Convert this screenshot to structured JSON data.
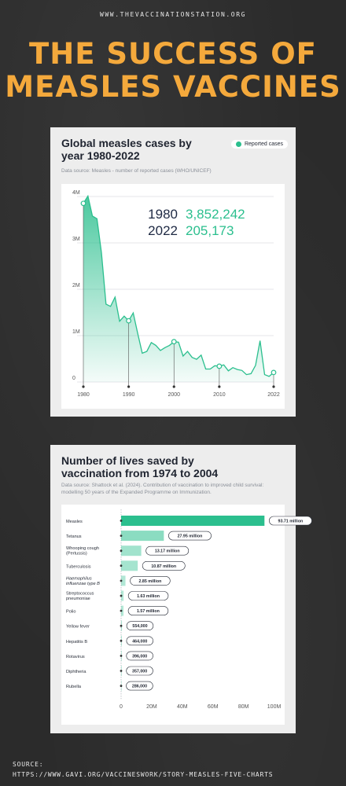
{
  "header": {
    "site_url": "WWW.THEVACCINATIONSTATION.ORG",
    "title_line1": "THE SUCCESS OF",
    "title_line2": "MEASLES VACCINES"
  },
  "colors": {
    "accent": "#f4a93c",
    "series": "#2bbf8e",
    "dark": "#1f2a44"
  },
  "cases_card": {
    "title": "Global measles cases by year 1980-2022",
    "source": "Data source: Measles - number of reported cases (WHO/UNICEF)",
    "legend": "Reported cases"
  },
  "lives_card": {
    "title": "Number of lives saved by vaccination from 1974 to 2004",
    "source": "Data source: Shattock et al. (2024). Contribution of vaccination to improved child survival: modelling 50 years of the Expanded Programme on Immunization."
  },
  "footer": {
    "label": "SOURCE:",
    "url": "HTTPS://WWW.GAVI.ORG/VACCINESWORK/STORY-MEASLES-FIVE-CHARTS"
  },
  "chart_data": [
    {
      "type": "area",
      "title": "Global measles cases by year 1980-2022",
      "xlabel": "",
      "ylabel": "",
      "series": [
        {
          "name": "Reported cases"
        }
      ],
      "xlim": [
        1980,
        2022
      ],
      "ylim": [
        0,
        4000000
      ],
      "y_ticks": [
        0,
        1000000,
        2000000,
        3000000,
        4000000
      ],
      "y_tick_labels": [
        "0",
        "1M",
        "2M",
        "3M",
        "4M"
      ],
      "x_ticks": [
        1980,
        1990,
        2000,
        2010,
        2022
      ],
      "x_tick_labels": [
        "1980",
        "1990",
        "2000",
        "2010",
        "2022"
      ],
      "x": [
        1980,
        1981,
        1982,
        1983,
        1984,
        1985,
        1986,
        1987,
        1988,
        1989,
        1990,
        1991,
        1992,
        1993,
        1994,
        1995,
        1996,
        1997,
        1998,
        1999,
        2000,
        2001,
        2002,
        2003,
        2004,
        2005,
        2006,
        2007,
        2008,
        2009,
        2010,
        2011,
        2012,
        2013,
        2014,
        2015,
        2016,
        2017,
        2018,
        2019,
        2020,
        2021,
        2022
      ],
      "y": [
        3852242,
        4010000,
        3580000,
        3520000,
        2790000,
        1680000,
        1630000,
        1830000,
        1310000,
        1420000,
        1320000,
        1490000,
        1050000,
        620000,
        660000,
        850000,
        790000,
        680000,
        740000,
        790000,
        870000,
        860000,
        560000,
        660000,
        530000,
        490000,
        580000,
        280000,
        280000,
        350000,
        340000,
        370000,
        240000,
        310000,
        270000,
        250000,
        160000,
        180000,
        360000,
        890000,
        160000,
        120000,
        205173
      ],
      "markers": [
        1980,
        1990,
        2000,
        2010,
        2022
      ],
      "annotations": [
        {
          "year": "1980",
          "value": "3,852,242"
        },
        {
          "year": "2022",
          "value": "205,173"
        }
      ]
    },
    {
      "type": "bar",
      "title": "Number of lives saved by vaccination from 1974 to 2004",
      "orientation": "horizontal",
      "categories": [
        "Measles",
        "Tetanus",
        "Whooping cough (Pertussis)",
        "Tuberculosis",
        "Haemophilus influenzae type B",
        "Streptococcus pneumoniae",
        "Polio",
        "Yellow fever",
        "Hepatitis B",
        "Rotavirus",
        "Diphtheria",
        "Rubella"
      ],
      "category_lines": [
        [
          "Measles"
        ],
        [
          "Tetanus"
        ],
        [
          "Whooping cough",
          "(Pertussis)"
        ],
        [
          "Tuberculosis"
        ],
        [
          "Haemophilus",
          "influenzae type B"
        ],
        [
          "Streptococcus",
          "pneumoniae"
        ],
        [
          "Polio"
        ],
        [
          "Yellow fever"
        ],
        [
          "Hepatitis B"
        ],
        [
          "Rotavirus"
        ],
        [
          "Diphtheria"
        ],
        [
          "Rubella"
        ]
      ],
      "italic_categories": [
        4
      ],
      "values": [
        93710000,
        27950000,
        13170000,
        10870000,
        2850000,
        1630000,
        1570000,
        554000,
        464000,
        396000,
        357000,
        286000
      ],
      "value_labels": [
        "93.71 million",
        "27.95 million",
        "13.17 million",
        "10.87 million",
        "2.85 million",
        "1.63 million",
        "1.57 million",
        "554,000",
        "464,000",
        "396,000",
        "357,000",
        "286,000"
      ],
      "xlim": [
        0,
        110000000
      ],
      "x_ticks": [
        0,
        20000000,
        40000000,
        60000000,
        80000000,
        100000000
      ],
      "x_tick_labels": [
        "0",
        "20M",
        "40M",
        "60M",
        "80M",
        "100M"
      ]
    }
  ]
}
